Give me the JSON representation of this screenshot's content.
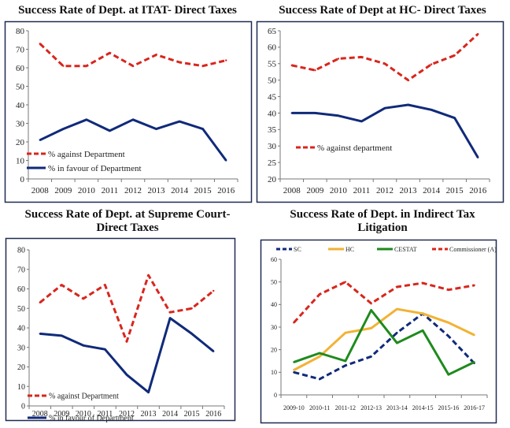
{
  "colors": {
    "red": "#d8261d",
    "blue": "#102a7a",
    "gold": "#f2b233",
    "green": "#1e8a1e",
    "border": "#1f2a52",
    "axis": "#777777"
  },
  "chart_data": [
    {
      "id": "itat",
      "type": "line",
      "title": "Success Rate of Dept. at ITAT- Direct Taxes",
      "categories": [
        "2008",
        "2009",
        "2010",
        "2011",
        "2012",
        "2013",
        "2014",
        "2015",
        "2016"
      ],
      "ylim": [
        0,
        80
      ],
      "yticks": [
        0,
        10,
        20,
        30,
        40,
        50,
        60,
        70,
        80
      ],
      "legend_position": "bottom-left",
      "series": [
        {
          "name": "% against Department",
          "color": "red",
          "dash": true,
          "values": [
            73,
            61,
            61,
            68,
            61,
            67,
            63,
            61,
            64
          ]
        },
        {
          "name": "% in favour of Department",
          "color": "blue",
          "dash": false,
          "values": [
            21,
            27,
            32,
            26,
            32,
            27,
            31,
            27,
            10
          ]
        }
      ]
    },
    {
      "id": "hc",
      "type": "line",
      "title": "Success Rate of Dept at HC- Direct Taxes",
      "categories": [
        "2008",
        "2009",
        "2010",
        "2011",
        "2012",
        "2013",
        "2014",
        "2015",
        "2016"
      ],
      "ylim": [
        20,
        65
      ],
      "yticks": [
        20,
        25,
        30,
        35,
        40,
        45,
        50,
        55,
        60,
        65
      ],
      "legend_position": "bottom-left",
      "series": [
        {
          "name": "% against department",
          "color": "red",
          "dash": true,
          "values": [
            54.5,
            53,
            56.5,
            57,
            55,
            50,
            54.8,
            57.5,
            64
          ]
        },
        {
          "name": "",
          "color": "blue",
          "dash": false,
          "values": [
            40,
            40,
            39.2,
            37.5,
            41.5,
            42.5,
            41,
            38.5,
            26.5
          ]
        }
      ]
    },
    {
      "id": "sc",
      "type": "line",
      "title": "Success Rate of Dept. at Supreme Court-Direct Taxes",
      "title_lines": [
        "Success Rate of Dept. at Supreme Court-",
        "Direct Taxes"
      ],
      "categories": [
        "2008",
        "2009",
        "2010",
        "2011",
        "2012",
        "2013",
        "2014",
        "2015",
        "2016"
      ],
      "ylim": [
        0,
        80
      ],
      "yticks": [
        0,
        10,
        20,
        30,
        40,
        50,
        60,
        70,
        80
      ],
      "legend_position": "bottom-left",
      "series": [
        {
          "name": "% against Department",
          "color": "red",
          "dash": true,
          "values": [
            53,
            62,
            55,
            62,
            33,
            67,
            48,
            50,
            59
          ]
        },
        {
          "name": "% in favour of Department",
          "color": "blue",
          "dash": false,
          "values": [
            37,
            36,
            31,
            29,
            16,
            7,
            45,
            37,
            28
          ]
        }
      ]
    },
    {
      "id": "indirect",
      "type": "line",
      "title": "Success Rate of Dept. in Indirect Tax Litigation",
      "title_lines": [
        "Success Rate of Dept. in Indirect Tax",
        "Litigation"
      ],
      "categories": [
        "2009-10",
        "2010-11",
        "2011-12",
        "2012-13",
        "2013-14",
        "2014-15",
        "2015-16",
        "2016-17"
      ],
      "ylim": [
        0,
        60
      ],
      "yticks": [
        0,
        10,
        20,
        30,
        40,
        50,
        60
      ],
      "legend_position": "top",
      "series": [
        {
          "name": "SC",
          "color": "blue",
          "dash": true,
          "values": [
            10,
            7,
            13,
            17,
            27.5,
            36,
            26,
            14
          ]
        },
        {
          "name": "HC",
          "color": "gold",
          "dash": false,
          "values": [
            11,
            17,
            27.5,
            29.5,
            38,
            36,
            32,
            26.5
          ]
        },
        {
          "name": "CESTAT",
          "color": "green",
          "dash": false,
          "values": [
            14.5,
            18.5,
            15,
            37.5,
            23,
            28.5,
            9,
            14.5
          ]
        },
        {
          "name": "Commissioner (A)",
          "color": "red",
          "dash": true,
          "values": [
            32,
            44.5,
            50,
            40.5,
            47.8,
            49.5,
            46.5,
            48.5
          ]
        }
      ]
    }
  ]
}
